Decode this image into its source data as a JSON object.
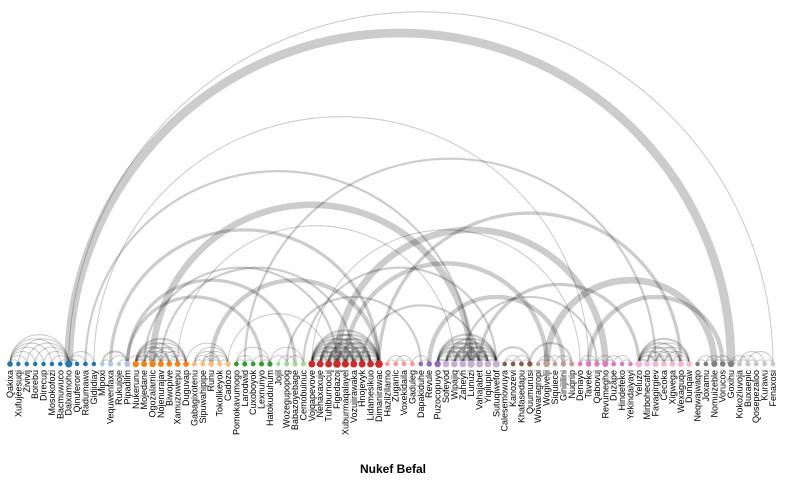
{
  "title": "Nukef Befal",
  "nodes": [
    {
      "label": "Qakixa",
      "group": 0
    },
    {
      "label": "Xufujeesuqi",
      "group": 0
    },
    {
      "label": "Zivivij",
      "group": 0
    },
    {
      "label": "Borebu",
      "group": 0
    },
    {
      "label": "Direcup",
      "group": 0
    },
    {
      "label": "Mosokofozi",
      "group": 0
    },
    {
      "label": "Bacmuwuco",
      "group": 0
    },
    {
      "label": "Dalxamoho",
      "group": 0
    },
    {
      "label": "Qinuferore",
      "group": 0
    },
    {
      "label": "Radumawa",
      "group": 0
    },
    {
      "label": "Gidjidiay",
      "group": 0
    },
    {
      "label": "Mipoxi",
      "group": 1
    },
    {
      "label": "Vequwenfaxa",
      "group": 1
    },
    {
      "label": "Rukujoje",
      "group": 1
    },
    {
      "label": "Pipadilm",
      "group": 1
    },
    {
      "label": "Nukerunu",
      "group": 2
    },
    {
      "label": "Mojedane",
      "group": 2
    },
    {
      "label": "Ogozalamic",
      "group": 2
    },
    {
      "label": "Nojenurajav",
      "group": 2
    },
    {
      "label": "Biwopive",
      "group": 2
    },
    {
      "label": "Xamuzowepu",
      "group": 2
    },
    {
      "label": "Duguvap",
      "group": 2
    },
    {
      "label": "Gabagixotenu",
      "group": 3
    },
    {
      "label": "Sipuwahipipe",
      "group": 3
    },
    {
      "label": "Runu",
      "group": 3
    },
    {
      "label": "Tokolikeyok",
      "group": 3
    },
    {
      "label": "Cadozo",
      "group": 3
    },
    {
      "label": "Pomokavumogo",
      "group": 4
    },
    {
      "label": "Larodwid",
      "group": 4
    },
    {
      "label": "Cuxoboyok",
      "group": 4
    },
    {
      "label": "Lexnunyo",
      "group": 4
    },
    {
      "label": "Hatokuduhum",
      "group": 4
    },
    {
      "label": "Jojil",
      "group": 5
    },
    {
      "label": "Wozegupopog",
      "group": 5
    },
    {
      "label": "Babazoyebage",
      "group": 5
    },
    {
      "label": "Cemobuinuc",
      "group": 5
    },
    {
      "label": "Vojqapevove",
      "group": 6
    },
    {
      "label": "Nehaxaxuje",
      "group": 6
    },
    {
      "label": "Tuhiburnocuj",
      "group": 6
    },
    {
      "label": "Figedazoj",
      "group": 6
    },
    {
      "label": "Xuburmaqalayel",
      "group": 6
    },
    {
      "label": "Vozujirawaka",
      "group": 6
    },
    {
      "label": "Hnojevyk",
      "group": 6
    },
    {
      "label": "Lidamesikuo",
      "group": 6
    },
    {
      "label": "Dimanirawac",
      "group": 6
    },
    {
      "label": "Hazilzilarno",
      "group": 7
    },
    {
      "label": "Zuganic",
      "group": 7
    },
    {
      "label": "Voxekidaila",
      "group": 7
    },
    {
      "label": "Gaduleg",
      "group": 7
    },
    {
      "label": "Dapakiduhe",
      "group": 8
    },
    {
      "label": "Revule",
      "group": 8
    },
    {
      "label": "Puzocopuyo",
      "group": 8
    },
    {
      "label": "Sofeyod",
      "group": 9
    },
    {
      "label": "Wipajiq",
      "group": 9
    },
    {
      "label": "Zaheyh",
      "group": 9
    },
    {
      "label": "Lunuzi",
      "group": 9
    },
    {
      "label": "Vahajabet",
      "group": 9
    },
    {
      "label": "Yiqilupic",
      "group": 9
    },
    {
      "label": "Sutuqiwefof",
      "group": 9
    },
    {
      "label": "Calesemowuya",
      "group": 10
    },
    {
      "label": "Kanozevi",
      "group": 10
    },
    {
      "label": "Khafasedapu",
      "group": 10
    },
    {
      "label": "Quumurusi",
      "group": 10
    },
    {
      "label": "Wowaragropi",
      "group": 11
    },
    {
      "label": "Wogivelji",
      "group": 11
    },
    {
      "label": "Siquiece",
      "group": 11
    },
    {
      "label": "Ginijilini",
      "group": 11
    },
    {
      "label": "Nuqnip",
      "group": 11
    },
    {
      "label": "Denayo",
      "group": 12
    },
    {
      "label": "Taveke",
      "group": 12
    },
    {
      "label": "Qabovuj",
      "group": 12
    },
    {
      "label": "Revumegho",
      "group": 12
    },
    {
      "label": "Duzape",
      "group": 12
    },
    {
      "label": "Hindefeko",
      "group": 12
    },
    {
      "label": "Yekindaiyayi",
      "group": 12
    },
    {
      "label": "Yeluzo",
      "group": 13
    },
    {
      "label": "Mirbohecafo",
      "group": 13
    },
    {
      "label": "Favagirgiev",
      "group": 13
    },
    {
      "label": "Cecoka",
      "group": 13
    },
    {
      "label": "Xigwega",
      "group": 13
    },
    {
      "label": "Wexaguqo",
      "group": 13
    },
    {
      "label": "Dunqaw",
      "group": 13
    },
    {
      "label": "Neqwajwaqo",
      "group": 14
    },
    {
      "label": "Joxamu",
      "group": 14
    },
    {
      "label": "Nomuizeble",
      "group": 14
    },
    {
      "label": "Vorucos",
      "group": 14
    },
    {
      "label": "Goxihu",
      "group": 14
    },
    {
      "label": "Kokoziuvoja",
      "group": 15
    },
    {
      "label": "Buxaepic",
      "group": 15
    },
    {
      "label": "Qosepezaloo",
      "group": 15
    },
    {
      "label": "Kurawu",
      "group": 15
    },
    {
      "label": "Fenaxosi",
      "group": 15
    }
  ],
  "group_colors": [
    "#1f77b4",
    "#aec7e8",
    "#ff7f0e",
    "#ffbb78",
    "#2ca02c",
    "#98df8a",
    "#d62728",
    "#ff9896",
    "#9467bd",
    "#c5b0d5",
    "#8c564b",
    "#c49c94",
    "#e377c2",
    "#f7b6d2",
    "#7f7f7f",
    "#c7c7c7"
  ],
  "links": [
    [
      0,
      1,
      1
    ],
    [
      0,
      2,
      1
    ],
    [
      0,
      3,
      1
    ],
    [
      0,
      4,
      1
    ],
    [
      0,
      5,
      1
    ],
    [
      0,
      6,
      1
    ],
    [
      0,
      7,
      1
    ],
    [
      1,
      7,
      1
    ],
    [
      2,
      7,
      1
    ],
    [
      3,
      7,
      1
    ],
    [
      4,
      7,
      1
    ],
    [
      5,
      7,
      1
    ],
    [
      6,
      7,
      1
    ],
    [
      7,
      8,
      2
    ],
    [
      7,
      9,
      1
    ],
    [
      7,
      10,
      1
    ],
    [
      7,
      86,
      8
    ],
    [
      7,
      91,
      1
    ],
    [
      9,
      55,
      2
    ],
    [
      10,
      69,
      1
    ],
    [
      11,
      12,
      1
    ],
    [
      11,
      14,
      2
    ],
    [
      12,
      14,
      1
    ],
    [
      13,
      14,
      1
    ],
    [
      14,
      16,
      1
    ],
    [
      14,
      34,
      3
    ],
    [
      15,
      16,
      2
    ],
    [
      15,
      17,
      2
    ],
    [
      15,
      18,
      2
    ],
    [
      15,
      19,
      2
    ],
    [
      15,
      20,
      2
    ],
    [
      15,
      21,
      2
    ],
    [
      16,
      17,
      1
    ],
    [
      16,
      18,
      1
    ],
    [
      16,
      19,
      1
    ],
    [
      16,
      20,
      1
    ],
    [
      16,
      21,
      1
    ],
    [
      17,
      18,
      1
    ],
    [
      17,
      19,
      1
    ],
    [
      17,
      20,
      1
    ],
    [
      17,
      21,
      1
    ],
    [
      18,
      19,
      1
    ],
    [
      18,
      20,
      1
    ],
    [
      18,
      21,
      1
    ],
    [
      19,
      20,
      1
    ],
    [
      19,
      21,
      1
    ],
    [
      20,
      21,
      1
    ],
    [
      16,
      39,
      2
    ],
    [
      17,
      55,
      6
    ],
    [
      18,
      41,
      2
    ],
    [
      21,
      26,
      1
    ],
    [
      22,
      23,
      1
    ],
    [
      22,
      24,
      1
    ],
    [
      22,
      25,
      1
    ],
    [
      22,
      26,
      1
    ],
    [
      23,
      24,
      1
    ],
    [
      23,
      25,
      1
    ],
    [
      23,
      26,
      1
    ],
    [
      24,
      25,
      1
    ],
    [
      24,
      26,
      1
    ],
    [
      25,
      26,
      1
    ],
    [
      14,
      30,
      3
    ],
    [
      20,
      53,
      1
    ],
    [
      24,
      44,
      4
    ],
    [
      12,
      44,
      3
    ],
    [
      26,
      38,
      1
    ],
    [
      27,
      28,
      1
    ],
    [
      27,
      29,
      1
    ],
    [
      28,
      29,
      1
    ],
    [
      27,
      31,
      1
    ],
    [
      29,
      31,
      1
    ],
    [
      30,
      31,
      1
    ],
    [
      28,
      77,
      2
    ],
    [
      31,
      33,
      1
    ],
    [
      31,
      35,
      1
    ],
    [
      32,
      34,
      1
    ],
    [
      33,
      35,
      1
    ],
    [
      33,
      49,
      2
    ],
    [
      35,
      58,
      2
    ],
    [
      36,
      37,
      2
    ],
    [
      36,
      38,
      2
    ],
    [
      36,
      39,
      2
    ],
    [
      36,
      40,
      2
    ],
    [
      36,
      41,
      2
    ],
    [
      36,
      42,
      2
    ],
    [
      36,
      43,
      2
    ],
    [
      36,
      44,
      2
    ],
    [
      37,
      38,
      2
    ],
    [
      37,
      39,
      2
    ],
    [
      37,
      40,
      2
    ],
    [
      37,
      41,
      2
    ],
    [
      37,
      42,
      2
    ],
    [
      37,
      43,
      2
    ],
    [
      37,
      44,
      2
    ],
    [
      38,
      39,
      2
    ],
    [
      38,
      40,
      2
    ],
    [
      38,
      41,
      2
    ],
    [
      38,
      42,
      2
    ],
    [
      38,
      43,
      2
    ],
    [
      38,
      44,
      2
    ],
    [
      39,
      40,
      2
    ],
    [
      39,
      41,
      2
    ],
    [
      39,
      42,
      2
    ],
    [
      39,
      43,
      2
    ],
    [
      39,
      44,
      2
    ],
    [
      40,
      41,
      2
    ],
    [
      40,
      42,
      2
    ],
    [
      40,
      43,
      2
    ],
    [
      40,
      44,
      2
    ],
    [
      41,
      42,
      2
    ],
    [
      41,
      43,
      2
    ],
    [
      41,
      44,
      2
    ],
    [
      42,
      43,
      2
    ],
    [
      42,
      44,
      2
    ],
    [
      43,
      44,
      2
    ],
    [
      36,
      68,
      1
    ],
    [
      39,
      71,
      6
    ],
    [
      40,
      64,
      4
    ],
    [
      42,
      56,
      2
    ],
    [
      44,
      80,
      3
    ],
    [
      45,
      46,
      1
    ],
    [
      45,
      47,
      1
    ],
    [
      46,
      47,
      1
    ],
    [
      46,
      48,
      1
    ],
    [
      47,
      48,
      1
    ],
    [
      49,
      50,
      1
    ],
    [
      48,
      50,
      1
    ],
    [
      51,
      53,
      1
    ],
    [
      51,
      52,
      2
    ],
    [
      51,
      54,
      2
    ],
    [
      51,
      55,
      2
    ],
    [
      51,
      56,
      2
    ],
    [
      51,
      57,
      2
    ],
    [
      51,
      58,
      2
    ],
    [
      52,
      53,
      2
    ],
    [
      52,
      54,
      2
    ],
    [
      52,
      55,
      2
    ],
    [
      52,
      56,
      2
    ],
    [
      52,
      57,
      2
    ],
    [
      52,
      58,
      2
    ],
    [
      53,
      54,
      2
    ],
    [
      53,
      55,
      2
    ],
    [
      53,
      56,
      2
    ],
    [
      53,
      57,
      2
    ],
    [
      53,
      58,
      2
    ],
    [
      54,
      55,
      2
    ],
    [
      54,
      56,
      2
    ],
    [
      54,
      57,
      2
    ],
    [
      54,
      58,
      2
    ],
    [
      55,
      56,
      2
    ],
    [
      55,
      57,
      2
    ],
    [
      55,
      58,
      2
    ],
    [
      56,
      57,
      2
    ],
    [
      56,
      58,
      2
    ],
    [
      57,
      58,
      2
    ],
    [
      50,
      66,
      4
    ],
    [
      56,
      75,
      3
    ],
    [
      54,
      70,
      2
    ],
    [
      58,
      62,
      2
    ],
    [
      59,
      60,
      1
    ],
    [
      59,
      61,
      1
    ],
    [
      60,
      61,
      1
    ],
    [
      60,
      62,
      1
    ],
    [
      61,
      62,
      1
    ],
    [
      62,
      67,
      2
    ],
    [
      63,
      64,
      1
    ],
    [
      63,
      65,
      1
    ],
    [
      64,
      65,
      1
    ],
    [
      64,
      66,
      1
    ],
    [
      65,
      67,
      1
    ],
    [
      66,
      67,
      1
    ],
    [
      64,
      84,
      6
    ],
    [
      68,
      69,
      1
    ],
    [
      68,
      70,
      1
    ],
    [
      69,
      70,
      1
    ],
    [
      70,
      71,
      1
    ],
    [
      70,
      72,
      1
    ],
    [
      71,
      72,
      1
    ],
    [
      71,
      73,
      1
    ],
    [
      72,
      74,
      1
    ],
    [
      73,
      74,
      1
    ],
    [
      69,
      85,
      4
    ],
    [
      75,
      76,
      2
    ],
    [
      75,
      77,
      2
    ],
    [
      75,
      78,
      2
    ],
    [
      75,
      79,
      2
    ],
    [
      75,
      80,
      2
    ],
    [
      75,
      81,
      2
    ],
    [
      76,
      77,
      1
    ],
    [
      76,
      78,
      1
    ],
    [
      76,
      79,
      1
    ],
    [
      76,
      80,
      1
    ],
    [
      76,
      81,
      1
    ],
    [
      77,
      78,
      1
    ],
    [
      77,
      79,
      1
    ],
    [
      77,
      80,
      1
    ],
    [
      77,
      81,
      1
    ],
    [
      78,
      79,
      1
    ],
    [
      78,
      80,
      1
    ],
    [
      78,
      81,
      1
    ],
    [
      79,
      80,
      1
    ],
    [
      79,
      81,
      1
    ],
    [
      80,
      81,
      1
    ],
    [
      82,
      83,
      1
    ],
    [
      82,
      84,
      1
    ],
    [
      83,
      84,
      1
    ],
    [
      83,
      85,
      1
    ],
    [
      84,
      85,
      1
    ],
    [
      84,
      86,
      1
    ],
    [
      85,
      86,
      1
    ],
    [
      86,
      87,
      1
    ],
    [
      87,
      88,
      1
    ],
    [
      86,
      88,
      1
    ],
    [
      87,
      89,
      1
    ],
    [
      88,
      89,
      1
    ],
    [
      87,
      90,
      1
    ],
    [
      89,
      90,
      1
    ],
    [
      88,
      91,
      1
    ],
    [
      90,
      91,
      1
    ]
  ]
}
